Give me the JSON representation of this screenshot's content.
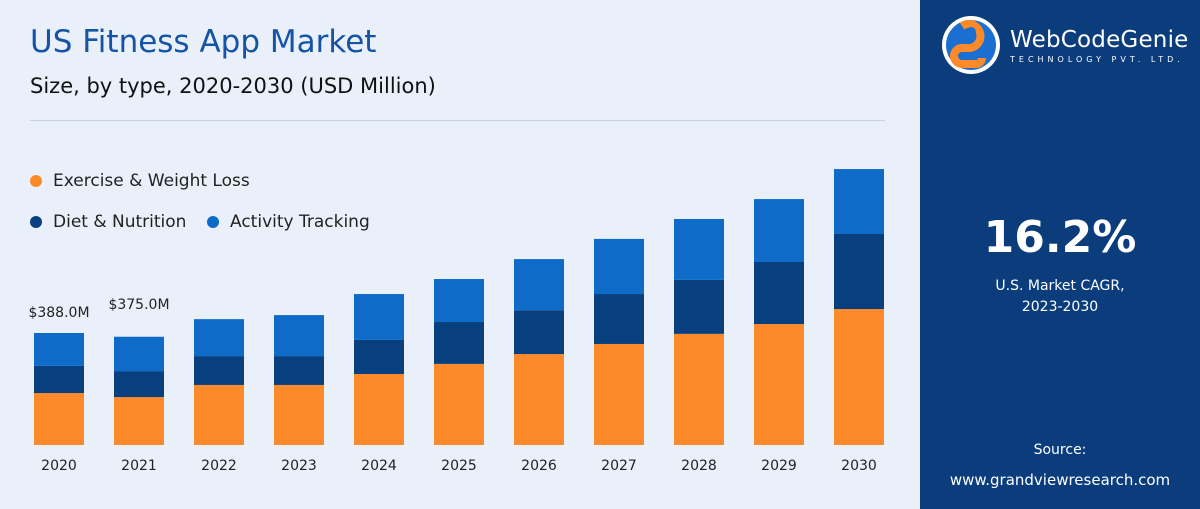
{
  "header": {
    "title": "US Fitness App Market",
    "subtitle": "Size, by type, 2020-2030 (USD Million)"
  },
  "brand": {
    "name": "WebCodeGenie",
    "tagline": "TECHNOLOGY PVT. LTD."
  },
  "side_panel": {
    "cagr_value": "16.2%",
    "cagr_label_line1": "U.S. Market CAGR,",
    "cagr_label_line2": "2023-2030",
    "source_label": "Source:",
    "source_url": "www.grandviewresearch.com"
  },
  "colors": {
    "background": "#e9f0fa",
    "panel": "#0b3d7d",
    "exercise": "#fd8a2a",
    "diet": "#083f7e",
    "activity": "#0f6bc8"
  },
  "chart_data": {
    "type": "bar",
    "stacked": true,
    "title": "US Fitness App Market",
    "subtitle": "Size, by type, 2020-2030 (USD Million)",
    "categories": [
      "2020",
      "2021",
      "2022",
      "2023",
      "2024",
      "2025",
      "2026",
      "2027",
      "2028",
      "2029",
      "2030"
    ],
    "series": [
      {
        "name": "Exercise & Weight Loss",
        "color": "#fd8a2a",
        "values": [
          180,
          166,
          208,
          208,
          246,
          281,
          315,
          350,
          385,
          419,
          471
        ]
      },
      {
        "name": "Diet & Nutrition",
        "color": "#083f7e",
        "values": [
          94,
          90,
          100,
          100,
          118,
          145,
          152,
          173,
          187,
          215,
          260
        ]
      },
      {
        "name": "Activity Tracking",
        "color": "#0f6bc8",
        "values": [
          114,
          119,
          128,
          142,
          159,
          149,
          177,
          191,
          211,
          218,
          225
        ]
      }
    ],
    "data_labels": [
      {
        "category": "2020",
        "text": "$388.0M"
      },
      {
        "category": "2021",
        "text": "$375.0M"
      }
    ],
    "ylim": [
      0,
      1000
    ],
    "grid": false,
    "legend_placement": "top-left"
  }
}
